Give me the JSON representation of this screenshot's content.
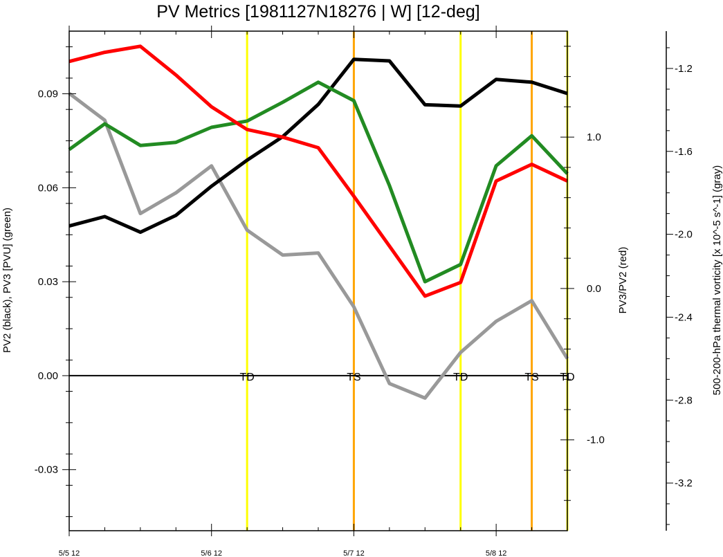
{
  "chart_data": {
    "type": "line",
    "title": "PV Metrics [1981127N18276 | W] [12-deg]",
    "x_ticks": [
      "5/5 12",
      "5/6 12",
      "5/7 12",
      "5/8 12"
    ],
    "x_tick_index": [
      0,
      4,
      8,
      12
    ],
    "n_points": 15,
    "left_axis": {
      "label": "PV2 (black), PV3 [PVU] (green)",
      "ylim": [
        -0.0495,
        0.11
      ],
      "ticks": [
        "-0.03",
        "0.00",
        "0.03",
        "0.06",
        "0.09"
      ],
      "tick_values": [
        -0.03,
        0.0,
        0.03,
        0.06,
        0.09
      ]
    },
    "right_axis": {
      "label": "PV3/PV2 (red)",
      "ylim": [
        -1.6,
        1.7
      ],
      "ticks": [
        "-1.0",
        "0.0",
        "1.0"
      ],
      "tick_values": [
        -1.0,
        0.0,
        1.0
      ]
    },
    "far_right_axis": {
      "label": "500-200-hPa thermal vorticity [x 10^-5 s^-1] (gray)",
      "ylim": [
        -3.43,
        -1.02
      ],
      "ticks": [
        "-3.2",
        "-2.8",
        "-2.4",
        "-2.0",
        "-1.6",
        "-1.2"
      ],
      "tick_values": [
        -3.2,
        -2.8,
        -2.4,
        -2.0,
        -1.6,
        -1.2
      ]
    },
    "series": [
      {
        "axis": "left",
        "color": "#000000",
        "values": [
          0.0478,
          0.0508,
          0.0458,
          0.0512,
          0.0605,
          0.0688,
          0.0763,
          0.0866,
          0.101,
          0.1005,
          0.0865,
          0.0861,
          0.0946,
          0.0937,
          0.0901
        ]
      },
      {
        "axis": "left",
        "color": "#228b22",
        "values": [
          0.0722,
          0.0804,
          0.0735,
          0.0745,
          0.0793,
          0.0813,
          0.0873,
          0.0937,
          0.0878,
          0.0607,
          0.03,
          0.0355,
          0.067,
          0.0766,
          0.0645
        ]
      },
      {
        "axis": "right",
        "color": "#ff0000",
        "values": [
          1.5,
          1.56,
          1.6,
          1.41,
          1.2,
          1.05,
          1.0,
          0.93,
          0.61,
          0.28,
          -0.05,
          0.04,
          0.71,
          0.82,
          0.71
        ]
      },
      {
        "axis": "far_right",
        "color": "#999999",
        "values": [
          -1.32,
          -1.45,
          -1.9,
          -1.8,
          -1.67,
          -1.98,
          -2.1,
          -2.09,
          -2.35,
          -2.72,
          -2.79,
          -2.57,
          -2.42,
          -2.32,
          -2.6
        ]
      }
    ],
    "stage_markers": [
      {
        "label": "TD",
        "index": 5,
        "color": "#ffff00"
      },
      {
        "label": "TS",
        "index": 8,
        "color": "#ffa500"
      },
      {
        "label": "TD",
        "index": 11,
        "color": "#ffff00"
      },
      {
        "label": "TS",
        "index": 13,
        "color": "#ffa500"
      },
      {
        "label": "TD",
        "index": 14,
        "color": "#ffff00"
      }
    ],
    "zero_line": true,
    "grid": false
  }
}
